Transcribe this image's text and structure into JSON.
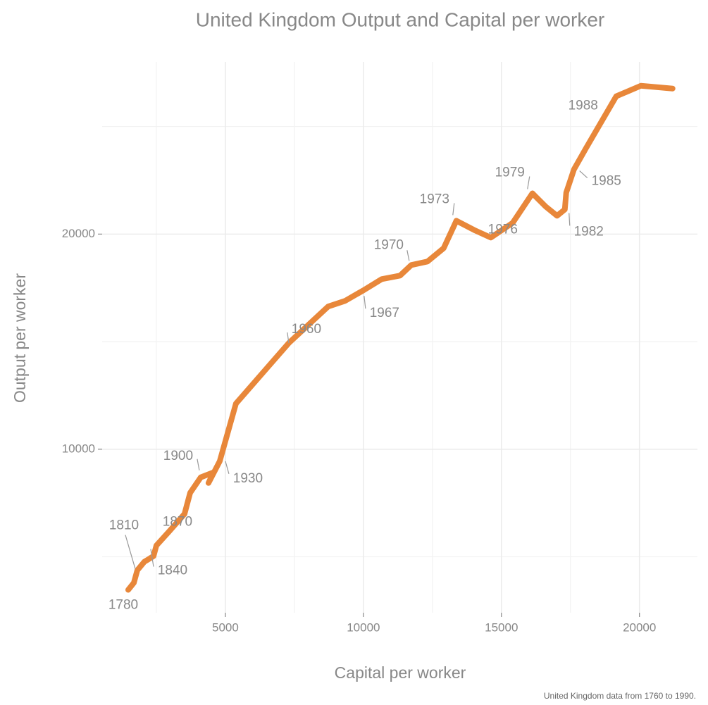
{
  "chart_data": {
    "type": "line",
    "title": "United Kingdom Output and Capital per worker",
    "x_label": "Capital per worker",
    "y_label": "Output per worker",
    "caption": "United Kingdom data from 1760 to 1990.",
    "xlim": [
      536,
      22100
    ],
    "ylim": [
      2400,
      28000
    ],
    "xticks": [
      5000,
      10000,
      15000,
      20000
    ],
    "yticks": [
      10000,
      20000
    ],
    "x_minor_grid": [
      2500,
      7500,
      12500,
      17500
    ],
    "y_minor_grid": [
      5000,
      15000,
      25000
    ],
    "grid": true,
    "series": [
      {
        "color": "#e8873a",
        "x": [
          1480,
          1684,
          1811,
          2066,
          2194,
          2398,
          2500,
          2959,
          3520,
          3724,
          4107,
          4566,
          4388,
          4796,
          5383,
          7296,
          8724,
          9337,
          10000,
          10663,
          11327,
          11735,
          12321,
          12908,
          13367,
          14056,
          14617,
          15408,
          16122,
          16607,
          17015,
          17296,
          17347,
          17628,
          18061,
          19158,
          20051,
          21199
        ],
        "values": [
          3464,
          3791,
          4379,
          4771,
          4869,
          5033,
          5523,
          6176,
          6993,
          7974,
          8693,
          8922,
          8431,
          9444,
          12124,
          14935,
          16634,
          16895,
          17386,
          17908,
          18072,
          18562,
          18725,
          19346,
          20621,
          20163,
          19837,
          20523,
          21895,
          21275,
          20850,
          21144,
          21928,
          23007,
          23987,
          26405,
          26895,
          26765
        ]
      }
    ],
    "annotations": [
      {
        "text": "1780",
        "x": 1480,
        "y": 3464
      },
      {
        "text": "1810",
        "x": 1811,
        "y": 4379
      },
      {
        "text": "1840",
        "x": 2398,
        "y": 5033
      },
      {
        "text": "1870",
        "x": 3520,
        "y": 6993
      },
      {
        "text": "1900",
        "x": 4107,
        "y": 8693
      },
      {
        "text": "1930",
        "x": 4796,
        "y": 9444
      },
      {
        "text": "1960",
        "x": 7296,
        "y": 14935
      },
      {
        "text": "1967",
        "x": 10000,
        "y": 17386
      },
      {
        "text": "1970",
        "x": 11735,
        "y": 18562
      },
      {
        "text": "1973",
        "x": 13367,
        "y": 20621
      },
      {
        "text": "1976",
        "x": 14617,
        "y": 19837
      },
      {
        "text": "1979",
        "x": 16122,
        "y": 21895
      },
      {
        "text": "1982",
        "x": 17015,
        "y": 20850
      },
      {
        "text": "1985",
        "x": 17628,
        "y": 23007
      },
      {
        "text": "1988",
        "x": 19158,
        "y": 26405
      }
    ]
  }
}
